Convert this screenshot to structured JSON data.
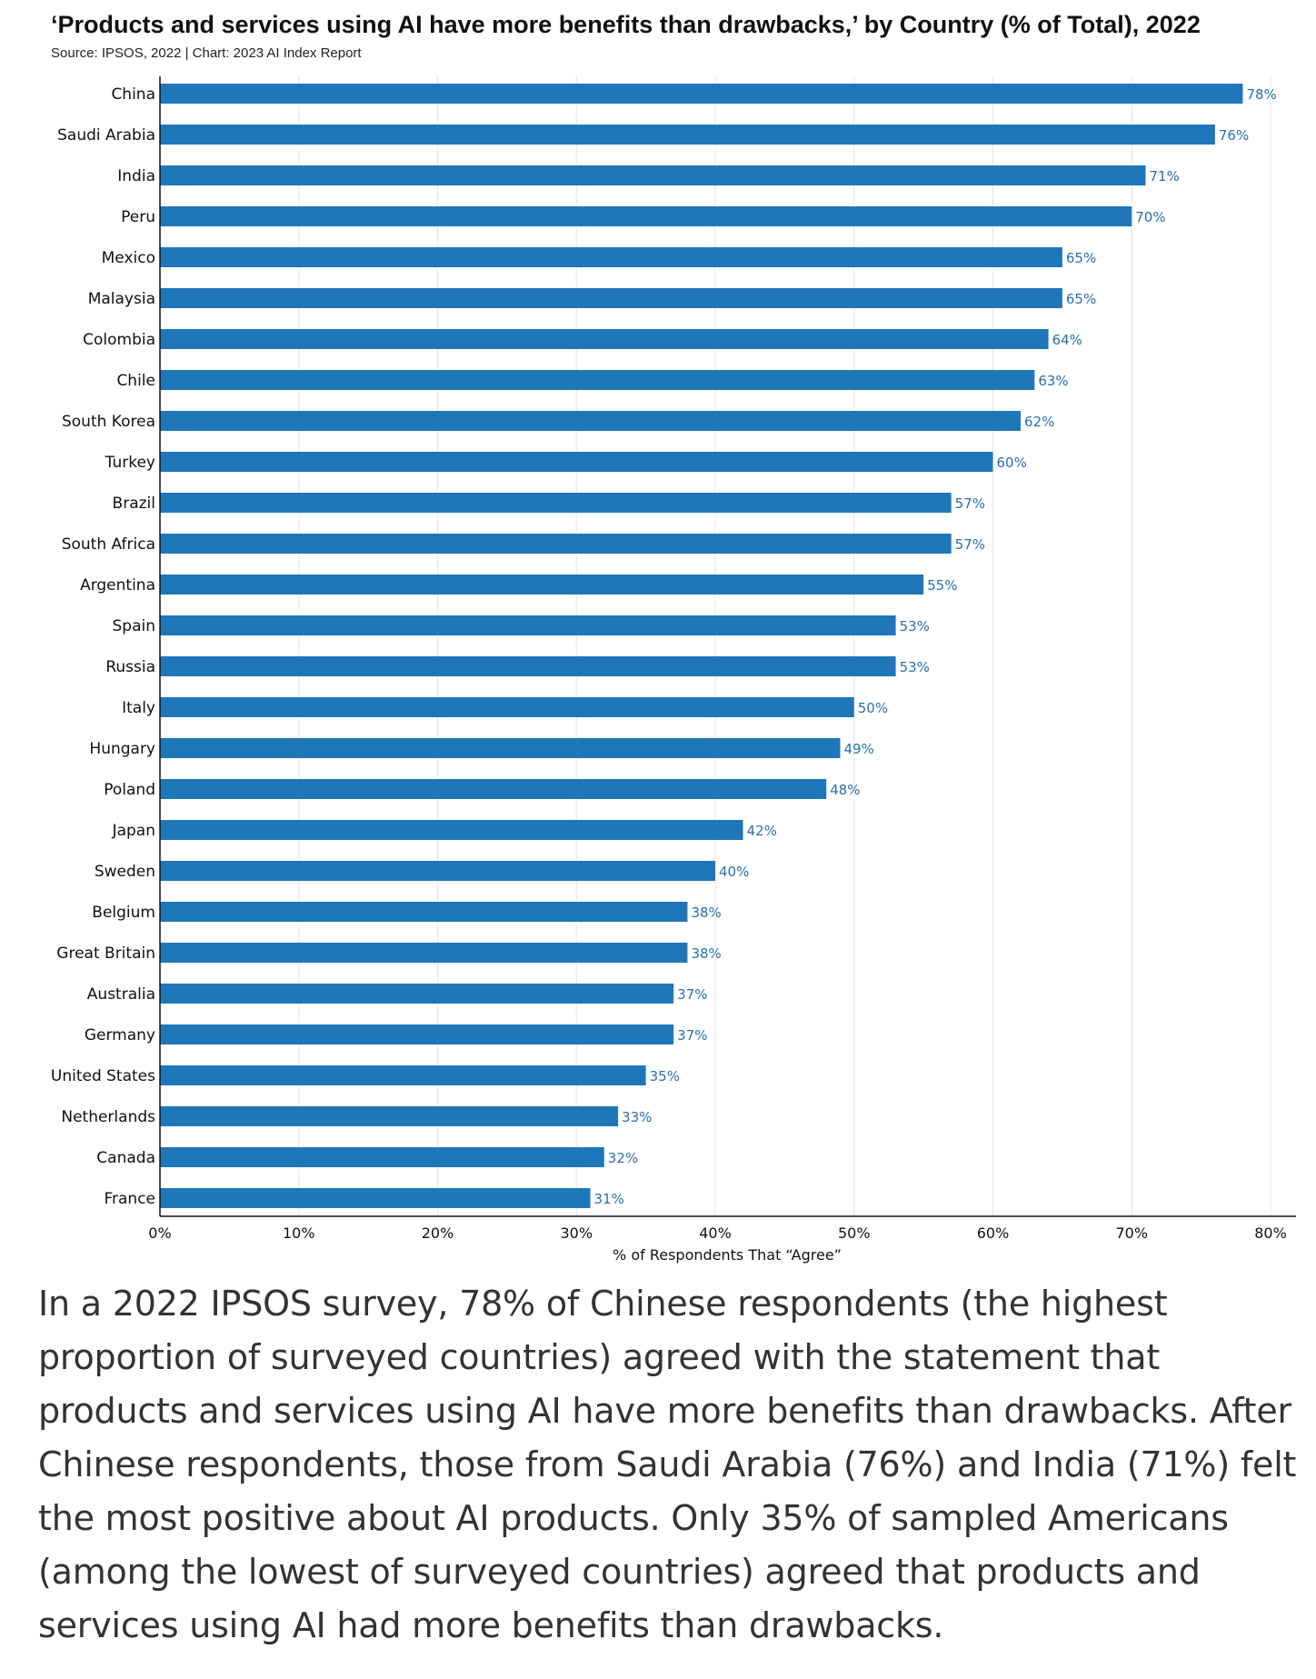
{
  "title": "‘Products and services using AI have more benefits than drawbacks,’ by Country (% of Total), 2022",
  "source": "Source: IPSOS, 2022 | Chart: 2023 AI Index Report",
  "caption": "In a 2022 IPSOS survey, 78% of Chinese respondents (the highest proportion of surveyed countries) agreed with the statement that products and services using AI have more benefits than drawbacks. After Chinese respondents, those from Saudi Arabia (76%) and India (71%) felt the most positive about AI products. Only 35% of sampled Americans (among the lowest of surveyed countries) agreed that products and services using AI had more benefits than drawbacks.",
  "colors": {
    "bar": "#1f77b9",
    "value_label": "#2a6fae",
    "grid": "#e6e6e6"
  },
  "chart_data": {
    "type": "bar",
    "orientation": "horizontal",
    "title": "‘Products and services using AI have more benefits than drawbacks,’ by Country (% of Total), 2022",
    "xlabel": "% of Respondents That “Agree”",
    "ylabel": "",
    "xlim": [
      0,
      82
    ],
    "grid": true,
    "x_ticks": [
      0,
      10,
      20,
      30,
      40,
      50,
      60,
      70,
      80
    ],
    "x_tick_labels": [
      "0%",
      "10%",
      "20%",
      "30%",
      "40%",
      "50%",
      "60%",
      "70%",
      "80%"
    ],
    "categories": [
      "China",
      "Saudi Arabia",
      "India",
      "Peru",
      "Mexico",
      "Malaysia",
      "Colombia",
      "Chile",
      "South Korea",
      "Turkey",
      "Brazil",
      "South Africa",
      "Argentina",
      "Spain",
      "Russia",
      "Italy",
      "Hungary",
      "Poland",
      "Japan",
      "Sweden",
      "Belgium",
      "Great Britain",
      "Australia",
      "Germany",
      "United States",
      "Netherlands",
      "Canada",
      "France"
    ],
    "values": [
      78,
      76,
      71,
      70,
      65,
      65,
      64,
      63,
      62,
      60,
      57,
      57,
      55,
      53,
      53,
      50,
      49,
      48,
      42,
      40,
      38,
      38,
      37,
      37,
      35,
      33,
      32,
      31
    ],
    "value_labels": [
      "78%",
      "76%",
      "71%",
      "70%",
      "65%",
      "65%",
      "64%",
      "63%",
      "62%",
      "60%",
      "57%",
      "57%",
      "55%",
      "53%",
      "53%",
      "50%",
      "49%",
      "48%",
      "42%",
      "40%",
      "38%",
      "38%",
      "37%",
      "37%",
      "35%",
      "33%",
      "32%",
      "31%"
    ]
  }
}
